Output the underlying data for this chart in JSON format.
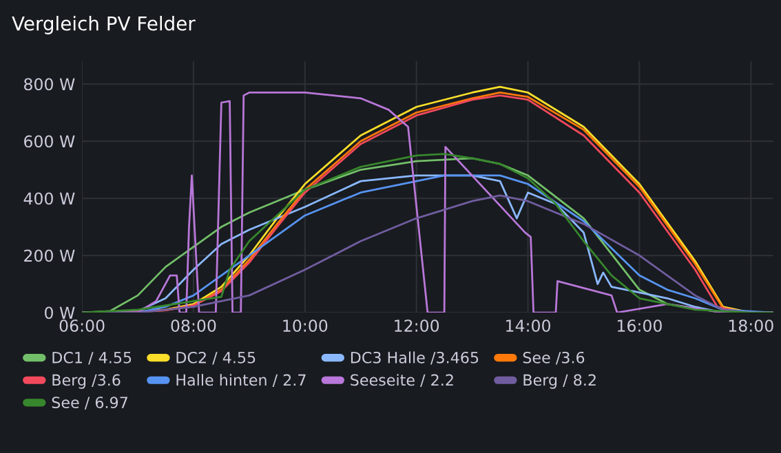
{
  "chart_data": {
    "type": "line",
    "title": "Vergleich PV Felder",
    "xlim": [
      6,
      18.4
    ],
    "ylim": [
      0,
      880
    ],
    "xticks": [
      {
        "value": 6,
        "label": "06:00"
      },
      {
        "value": 8,
        "label": "08:00"
      },
      {
        "value": 10,
        "label": "10:00"
      },
      {
        "value": 12,
        "label": "12:00"
      },
      {
        "value": 14,
        "label": "14:00"
      },
      {
        "value": 16,
        "label": "16:00"
      },
      {
        "value": 18,
        "label": "18:00"
      }
    ],
    "yticks": [
      {
        "value": 0,
        "label": "0 W"
      },
      {
        "value": 200,
        "label": "200 W"
      },
      {
        "value": 400,
        "label": "400 W"
      },
      {
        "value": 600,
        "label": "600 W"
      },
      {
        "value": 800,
        "label": "800 W"
      }
    ],
    "grid": true,
    "legend": "bottom",
    "marker": "none",
    "line_style": "solid",
    "series": [
      {
        "name": "DC1 / 4.55",
        "color": "#73bf69",
        "x": [
          6,
          6.5,
          7,
          7.5,
          8,
          8.5,
          9,
          10,
          11,
          12,
          13,
          13.5,
          14,
          15,
          16,
          16.5,
          17.5,
          18.4
        ],
        "values": [
          0,
          5,
          60,
          160,
          230,
          300,
          350,
          430,
          500,
          530,
          540,
          520,
          480,
          330,
          80,
          30,
          0,
          0
        ]
      },
      {
        "name": "DC2 / 4.55",
        "color": "#fade2a",
        "x": [
          6,
          6.75,
          7.5,
          8,
          8.5,
          9,
          9.5,
          10,
          11,
          12,
          13,
          13.5,
          14,
          15,
          16,
          17,
          17.5,
          18,
          18.4
        ],
        "values": [
          0,
          0,
          10,
          30,
          90,
          200,
          330,
          450,
          620,
          720,
          770,
          790,
          770,
          650,
          450,
          180,
          20,
          0,
          0
        ]
      },
      {
        "name": "DC3 Halle /3.465",
        "color": "#8ab8ff",
        "x": [
          6,
          7,
          7.5,
          8,
          8.5,
          9,
          10,
          11,
          12,
          13,
          13.5,
          13.8,
          14,
          14.5,
          15,
          15.25,
          15.35,
          15.5,
          16,
          16.5,
          17,
          17.5,
          18.4
        ],
        "values": [
          0,
          5,
          50,
          150,
          240,
          290,
          370,
          460,
          480,
          480,
          460,
          330,
          420,
          380,
          280,
          100,
          140,
          90,
          70,
          50,
          20,
          0,
          0
        ]
      },
      {
        "name": "See /3.6",
        "color": "#ff780a",
        "x": [
          6,
          6.75,
          7.5,
          8,
          8.5,
          9,
          9.5,
          10,
          11,
          12,
          13,
          13.5,
          14,
          15,
          16,
          17,
          17.5,
          18,
          18.4
        ],
        "values": [
          0,
          0,
          8,
          25,
          80,
          185,
          310,
          430,
          600,
          700,
          750,
          770,
          755,
          640,
          440,
          170,
          15,
          0,
          0
        ]
      },
      {
        "name": "Berg /3.6",
        "color": "#f2495c",
        "x": [
          6,
          6.75,
          7.5,
          8,
          8.5,
          9,
          9.5,
          10,
          11,
          12,
          13,
          13.5,
          14,
          15,
          16,
          17,
          17.4,
          17.9,
          18.4
        ],
        "values": [
          0,
          0,
          8,
          25,
          75,
          175,
          300,
          420,
          590,
          690,
          745,
          760,
          745,
          620,
          420,
          150,
          20,
          0,
          0
        ]
      },
      {
        "name": "Halle hinten / 2.7",
        "color": "#5794f2",
        "x": [
          6,
          7,
          7.5,
          8,
          9,
          10,
          11,
          12,
          12.5,
          13.5,
          14,
          15,
          16,
          16.5,
          17,
          17.5,
          18.4
        ],
        "values": [
          0,
          0,
          20,
          60,
          200,
          340,
          420,
          460,
          480,
          480,
          450,
          320,
          130,
          80,
          50,
          10,
          0
        ]
      },
      {
        "name": "Seeseite / 2.2",
        "color": "#b877d9",
        "x": [
          6,
          7,
          7.33,
          7.58,
          7.7,
          7.75,
          7.87,
          7.92,
          7.97,
          8.1,
          8.4,
          8.5,
          8.65,
          8.7,
          8.85,
          8.9,
          9,
          10,
          11,
          11.5,
          11.85,
          12.2,
          12.5,
          12.52,
          13.95,
          14.05,
          14.1,
          14.5,
          14.53,
          15.5,
          15.6,
          16.5,
          17.5,
          18.4
        ],
        "values": [
          0,
          0,
          40,
          130,
          130,
          0,
          0,
          300,
          480,
          0,
          0,
          735,
          740,
          0,
          0,
          760,
          770,
          770,
          750,
          710,
          650,
          0,
          0,
          580,
          280,
          265,
          0,
          0,
          110,
          60,
          0,
          30,
          0,
          0
        ]
      },
      {
        "name": "Berg / 8.2",
        "color": "#705da0",
        "x": [
          6,
          7,
          8,
          9,
          10,
          11,
          12,
          13,
          13.5,
          14,
          15,
          16,
          17,
          17.5,
          18,
          18.4
        ],
        "values": [
          0,
          0,
          20,
          60,
          150,
          250,
          330,
          390,
          410,
          390,
          310,
          200,
          60,
          10,
          0,
          0
        ]
      },
      {
        "name": "See / 6.97",
        "color": "#37872d",
        "x": [
          6,
          7,
          8,
          8.5,
          8.65,
          9,
          10,
          11,
          12,
          12.5,
          13,
          13.5,
          14,
          14.5,
          15,
          15.5,
          16,
          17,
          18,
          18.4
        ],
        "values": [
          0,
          10,
          40,
          55,
          150,
          250,
          430,
          510,
          550,
          555,
          540,
          520,
          470,
          380,
          250,
          130,
          50,
          10,
          0,
          0
        ]
      }
    ]
  }
}
